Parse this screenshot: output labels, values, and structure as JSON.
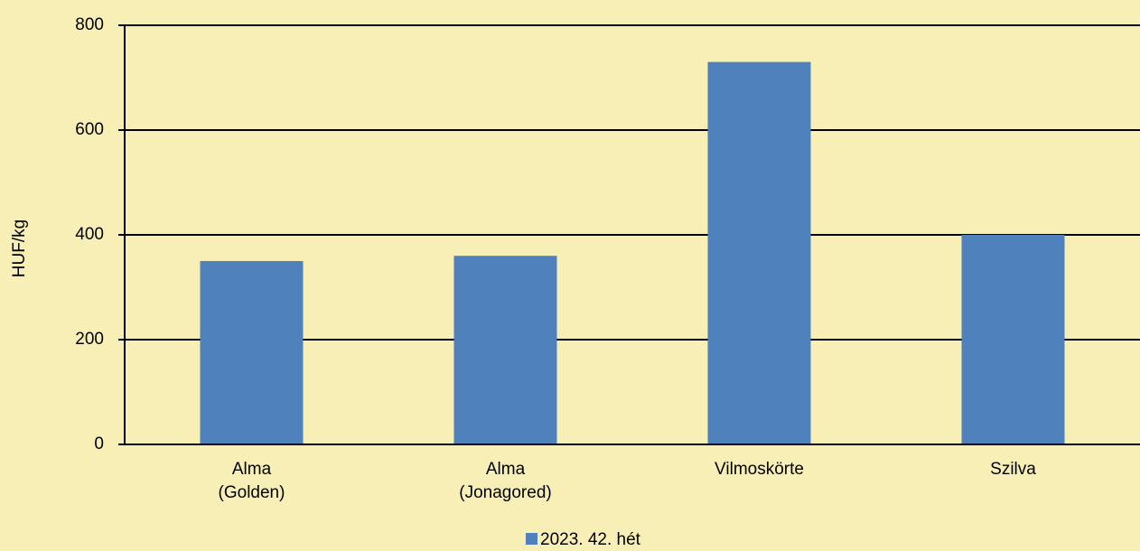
{
  "chart_data": {
    "type": "bar",
    "y_label": "HUF/kg",
    "categories": [
      "Alma (Golden)",
      "Alma (Jonagored)",
      "Vilmoskörte",
      "Szilva"
    ],
    "series": [
      {
        "name": "2023. 42. hét",
        "color": "#4f81bd",
        "values": [
          350,
          360,
          730,
          400
        ]
      }
    ],
    "ylim": [
      0,
      800
    ],
    "yticks": [
      0,
      200,
      400,
      600,
      800
    ],
    "grid": true,
    "legend": "bottom"
  }
}
